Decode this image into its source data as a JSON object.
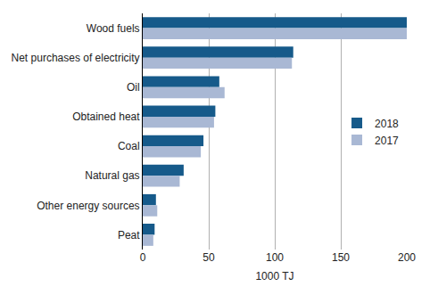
{
  "chart_data": {
    "type": "bar",
    "orientation": "horizontal",
    "categories": [
      "Wood fuels",
      "Net purchases of electricity",
      "Oil",
      "Obtained heat",
      "Coal",
      "Natural gas",
      "Other energy sources",
      "Peat"
    ],
    "series": [
      {
        "name": "2018",
        "color": "#165a8a",
        "values": [
          200,
          114,
          58,
          55,
          46,
          31,
          10,
          9
        ]
      },
      {
        "name": "2017",
        "color": "#a9b8d4",
        "values": [
          200,
          113,
          62,
          54,
          44,
          28,
          11,
          8
        ]
      }
    ],
    "x_label": "1000 TJ",
    "xlim": [
      0,
      200
    ],
    "xticks": [
      0,
      50,
      100,
      150,
      200
    ],
    "grid": true,
    "legend": "right"
  }
}
